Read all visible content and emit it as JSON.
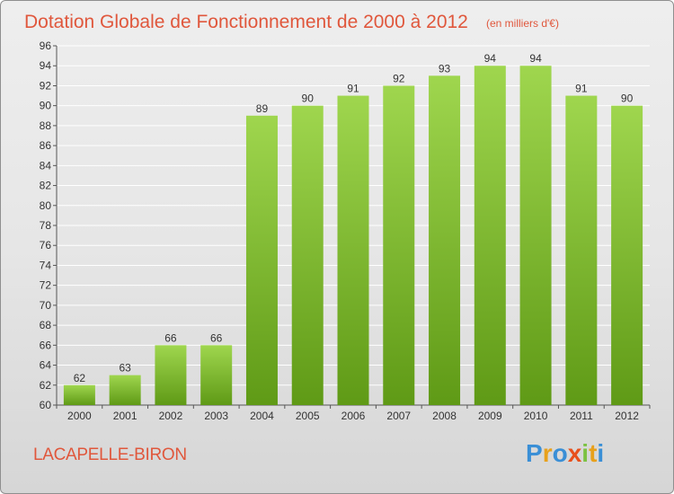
{
  "header": {
    "title": "Dotation Globale de Fonctionnement de 2000 à 2012",
    "unit": "(en milliers d'€)"
  },
  "footer": {
    "commune": "LACAPELLE-BIRON",
    "brand": {
      "letters": [
        "P",
        "r",
        "o",
        "x",
        "i",
        "t",
        "i"
      ],
      "colors": [
        "#3a8fd6",
        "#e8a11c",
        "#3a8fd6",
        "#e8501c",
        "#7cc242",
        "#e8a11c",
        "#3a8fd6"
      ]
    }
  },
  "chart_data": {
    "type": "bar",
    "title": "Dotation Globale de Fonctionnement de 2000 à 2012",
    "subtitle": "(en milliers d'€)",
    "categories": [
      "2000",
      "2001",
      "2002",
      "2003",
      "2004",
      "2005",
      "2006",
      "2007",
      "2008",
      "2009",
      "2010",
      "2011",
      "2012"
    ],
    "values": [
      62,
      63,
      66,
      66,
      89,
      90,
      91,
      92,
      93,
      94,
      94,
      91,
      90
    ],
    "ylim": [
      60,
      96
    ],
    "yticks": [
      "60",
      "62",
      "64",
      "66",
      "68",
      "70",
      "72",
      "74",
      "76",
      "78",
      "80",
      "82",
      "84",
      "86",
      "88",
      "90",
      "92",
      "94",
      "96"
    ],
    "grid": true,
    "legend": "none",
    "colors": {
      "bar_top": "#9fd64e",
      "bar_bottom": "#5f9a16",
      "grid": "#ffffff"
    }
  }
}
